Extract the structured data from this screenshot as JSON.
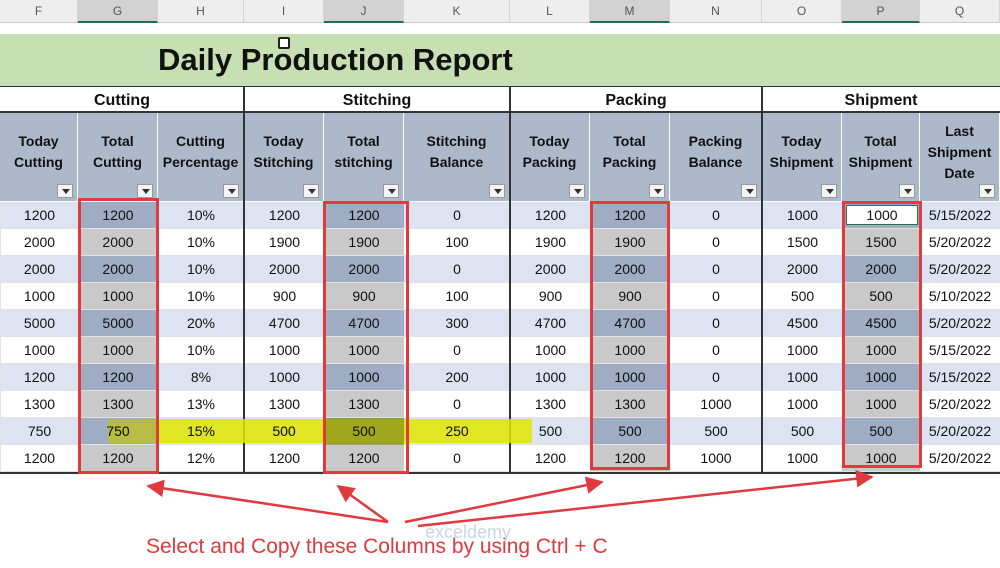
{
  "excel_columns": [
    "F",
    "G",
    "H",
    "I",
    "J",
    "K",
    "L",
    "M",
    "N",
    "O",
    "P",
    "Q"
  ],
  "title": "Daily Production Report",
  "groups": [
    "Cutting",
    "Stitching",
    "Packing",
    "Shipment"
  ],
  "headers": [
    "Today Cutting",
    "Total Cutting",
    "Cutting Percentage",
    "Today Stitching",
    "Total stitching",
    "Stitching Balance",
    "Today Packing",
    "Total Packing",
    "Packing Balance",
    "Today Shipment",
    "Total Shipment",
    "Last Shipment Date"
  ],
  "rows": [
    [
      "1200",
      "1200",
      "10%",
      "1200",
      "1200",
      "0",
      "1200",
      "1200",
      "0",
      "1000",
      "1000",
      "5/15/2022"
    ],
    [
      "2000",
      "2000",
      "10%",
      "1900",
      "1900",
      "100",
      "1900",
      "1900",
      "0",
      "1500",
      "1500",
      "5/20/2022"
    ],
    [
      "2000",
      "2000",
      "10%",
      "2000",
      "2000",
      "0",
      "2000",
      "2000",
      "0",
      "2000",
      "2000",
      "5/20/2022"
    ],
    [
      "1000",
      "1000",
      "10%",
      "900",
      "900",
      "100",
      "900",
      "900",
      "0",
      "500",
      "500",
      "5/10/2022"
    ],
    [
      "5000",
      "5000",
      "20%",
      "4700",
      "4700",
      "300",
      "4700",
      "4700",
      "0",
      "4500",
      "4500",
      "5/20/2022"
    ],
    [
      "1000",
      "1000",
      "10%",
      "1000",
      "1000",
      "0",
      "1000",
      "1000",
      "0",
      "1000",
      "1000",
      "5/15/2022"
    ],
    [
      "1200",
      "1200",
      "8%",
      "1000",
      "1000",
      "200",
      "1000",
      "1000",
      "0",
      "1000",
      "1000",
      "5/15/2022"
    ],
    [
      "1300",
      "1300",
      "13%",
      "1300",
      "1300",
      "0",
      "1300",
      "1300",
      "1000",
      "1000",
      "1000",
      "5/20/2022"
    ],
    [
      "750",
      "750",
      "15%",
      "500",
      "500",
      "250",
      "500",
      "500",
      "500",
      "500",
      "500",
      "5/20/2022"
    ],
    [
      "1200",
      "1200",
      "12%",
      "1200",
      "1200",
      "0",
      "1200",
      "1200",
      "1000",
      "1000",
      "1000",
      "5/20/2022"
    ]
  ],
  "annotation": "Select and Copy these Columns by using Ctrl + C",
  "watermark": "exceldemy",
  "colors": {
    "title_band": "#c6e0b4",
    "header": "#acb9ca",
    "red": "#e0393e",
    "highlight": "#e2e600"
  }
}
